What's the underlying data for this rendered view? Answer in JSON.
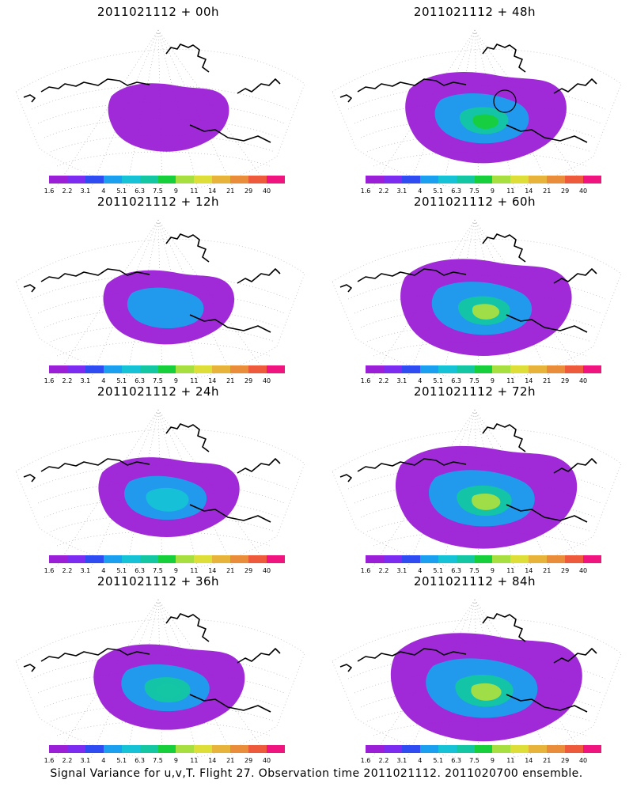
{
  "caption": "Signal Variance for u,v,T. Flight 27. Observation time 2011021112. 2011020700 ensemble.",
  "colorbar": {
    "labels": [
      "1.6",
      "2.2",
      "3.1",
      "4",
      "5.1",
      "6.3",
      "7.5",
      "9",
      "11",
      "14",
      "21",
      "29",
      "40"
    ],
    "colors": [
      "#9b1fd6",
      "#7b2cf0",
      "#2e4cf2",
      "#1aa0ee",
      "#16c3d6",
      "#14c6a2",
      "#17cf3b",
      "#a7df40",
      "#dede38",
      "#e8b33a",
      "#ea8d3a",
      "#ee5a3c",
      "#f0147e"
    ]
  },
  "panels": [
    {
      "title": "2011021112 + 00h",
      "level": 2
    },
    {
      "title": "2011021112 + 48h",
      "level": 6
    },
    {
      "title": "2011021112 + 12h",
      "level": 3
    },
    {
      "title": "2011021112 + 60h",
      "level": 7
    },
    {
      "title": "2011021112 + 24h",
      "level": 4
    },
    {
      "title": "2011021112 + 72h",
      "level": 8
    },
    {
      "title": "2011021112 + 36h",
      "level": 5
    },
    {
      "title": "2011021112 + 84h",
      "level": 9
    }
  ]
}
